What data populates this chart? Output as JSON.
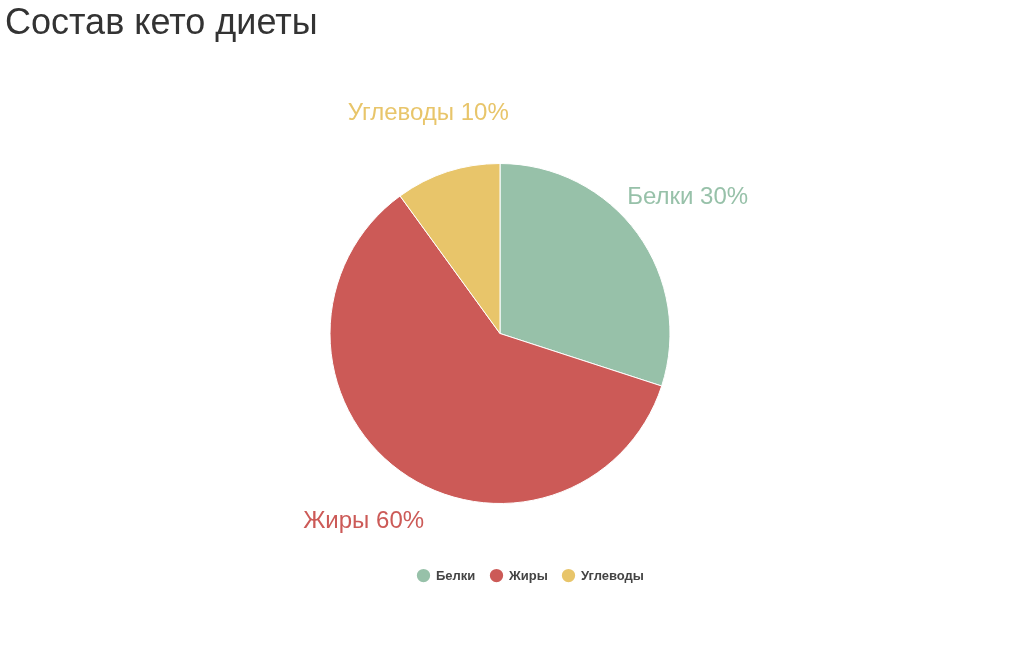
{
  "chart_data": {
    "type": "pie",
    "title": "Состав кето диеты",
    "categories": [
      "Белки",
      "Жиры",
      "Углеводы"
    ],
    "values": [
      30,
      60,
      10
    ],
    "value_labels": [
      "30%",
      "60%",
      "10%"
    ],
    "colors": [
      "#97c1a9",
      "#cc5a57",
      "#e8c56a"
    ],
    "legend": "bottom"
  }
}
